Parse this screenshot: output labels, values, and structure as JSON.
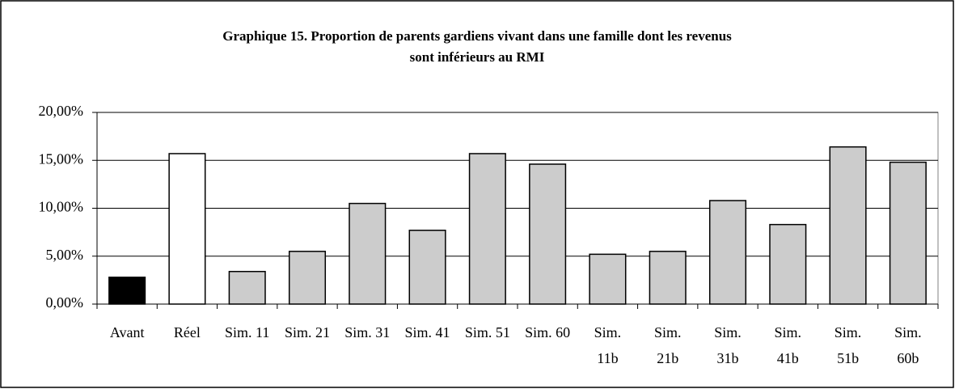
{
  "chart_data": {
    "type": "bar",
    "title": [
      "Graphique 15. Proportion de parents gardiens vivant dans une famille dont les revenus",
      "sont inférieurs au RMI"
    ],
    "categories": [
      "Avant",
      "Réel",
      "Sim. 11",
      "Sim. 21",
      "Sim. 31",
      "Sim. 41",
      "Sim. 51",
      "Sim. 60",
      "Sim. 11b",
      "Sim. 21b",
      "Sim. 31b",
      "Sim. 41b",
      "Sim. 51b",
      "Sim. 60b"
    ],
    "values": [
      2.8,
      15.7,
      3.4,
      5.5,
      10.5,
      7.7,
      15.7,
      14.6,
      5.2,
      5.5,
      10.8,
      8.3,
      16.4,
      14.8
    ],
    "colors": [
      "#000000",
      "#ffffff",
      "#cccccc",
      "#cccccc",
      "#cccccc",
      "#cccccc",
      "#cccccc",
      "#cccccc",
      "#cccccc",
      "#cccccc",
      "#cccccc",
      "#cccccc",
      "#cccccc",
      "#cccccc"
    ],
    "ylim": [
      0,
      20
    ],
    "yticks": [
      {
        "value": 0,
        "label": "0,00%"
      },
      {
        "value": 5,
        "label": "5,00%"
      },
      {
        "value": 10,
        "label": "10,00%"
      },
      {
        "value": 15,
        "label": "15,00%"
      },
      {
        "value": 20,
        "label": "20,00%"
      }
    ],
    "grid": true
  }
}
